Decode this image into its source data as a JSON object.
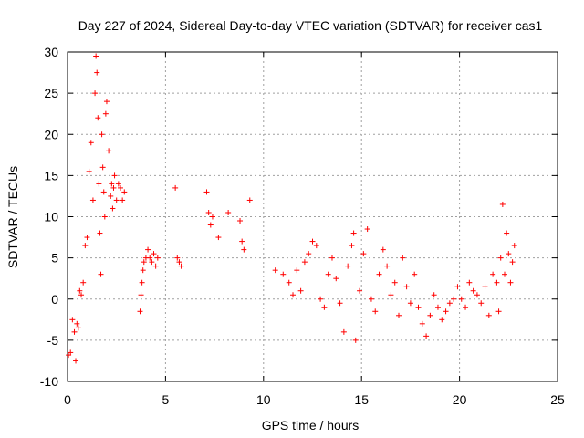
{
  "chart_data": {
    "type": "scatter",
    "title": "Day 227 of 2024, Sidereal Day-to-day VTEC variation (SDTVAR) for receiver cas1",
    "xlabel": "GPS time / hours",
    "ylabel": "SDTVAR / TECUs",
    "xlim": [
      0,
      25
    ],
    "ylim": [
      -10,
      30
    ],
    "xticks": [
      "0",
      "5",
      "10",
      "15",
      "20",
      "25"
    ],
    "yticks": [
      "-10",
      "-5",
      "0",
      "5",
      "10",
      "15",
      "20",
      "25",
      "30"
    ],
    "grid": true,
    "marker": "plus",
    "marker_color": "#ff0000",
    "series": [
      {
        "name": "SDTVAR",
        "x": [
          0.05,
          0.15,
          0.25,
          0.35,
          0.42,
          0.48,
          0.55,
          0.62,
          0.7,
          0.8,
          0.9,
          1.0,
          1.1,
          1.2,
          1.3,
          1.4,
          1.45,
          1.5,
          1.55,
          1.6,
          1.65,
          1.7,
          1.75,
          1.8,
          1.85,
          1.9,
          1.95,
          2.0,
          2.1,
          2.2,
          2.25,
          2.3,
          2.35,
          2.4,
          2.5,
          2.6,
          2.7,
          2.8,
          2.9,
          3.7,
          3.75,
          3.8,
          3.85,
          3.9,
          4.0,
          4.1,
          4.2,
          4.3,
          4.4,
          4.5,
          4.6,
          5.5,
          5.6,
          5.7,
          5.8,
          7.1,
          7.2,
          7.3,
          7.4,
          7.7,
          8.2,
          8.8,
          8.9,
          9.0,
          9.3,
          10.6,
          11.0,
          11.3,
          11.5,
          11.7,
          11.9,
          12.1,
          12.3,
          12.5,
          12.7,
          12.9,
          13.1,
          13.3,
          13.5,
          13.7,
          13.9,
          14.1,
          14.3,
          14.5,
          14.6,
          14.7,
          14.9,
          15.1,
          15.3,
          15.5,
          15.7,
          15.9,
          16.1,
          16.3,
          16.5,
          16.7,
          16.9,
          17.1,
          17.3,
          17.5,
          17.7,
          17.9,
          18.1,
          18.3,
          18.5,
          18.7,
          18.9,
          19.1,
          19.3,
          19.5,
          19.7,
          19.9,
          20.1,
          20.3,
          20.5,
          20.7,
          20.9,
          21.1,
          21.3,
          21.5,
          21.7,
          21.9,
          22.0,
          22.1,
          22.2,
          22.3,
          22.4,
          22.5,
          22.6,
          22.7,
          22.8
        ],
        "y": [
          -6.8,
          -6.5,
          -2.5,
          -4.0,
          -7.5,
          -3.0,
          -3.5,
          1.0,
          0.5,
          2.0,
          6.5,
          7.5,
          15.5,
          19.0,
          12.0,
          25.0,
          29.5,
          27.5,
          22.0,
          14.0,
          8.0,
          3.0,
          20.0,
          16.0,
          13.0,
          10.0,
          22.5,
          24.0,
          18.0,
          12.5,
          14.0,
          11.0,
          13.5,
          15.0,
          12.0,
          14.0,
          13.5,
          12.0,
          13.0,
          -1.5,
          0.5,
          2.0,
          3.5,
          4.5,
          5.0,
          6.0,
          5.0,
          4.5,
          5.5,
          4.0,
          5.0,
          13.5,
          5.0,
          4.5,
          4.0,
          13.0,
          10.5,
          9.0,
          10.0,
          7.5,
          10.5,
          9.5,
          7.0,
          6.0,
          12.0,
          3.5,
          3.0,
          2.0,
          0.5,
          3.5,
          1.0,
          4.5,
          5.5,
          7.0,
          6.5,
          0.0,
          -1.0,
          3.0,
          5.0,
          2.5,
          -0.5,
          -4.0,
          4.0,
          6.5,
          8.0,
          -5.0,
          1.0,
          5.5,
          8.5,
          0.0,
          -1.5,
          3.0,
          6.0,
          4.0,
          0.5,
          2.0,
          -2.0,
          5.0,
          1.5,
          -0.5,
          3.0,
          -1.0,
          -3.0,
          -4.5,
          -2.0,
          0.5,
          -1.0,
          -2.5,
          -1.5,
          -0.5,
          0.0,
          1.5,
          0.0,
          -1.0,
          2.0,
          1.0,
          0.5,
          -0.5,
          1.5,
          -2.0,
          3.0,
          2.0,
          -1.5,
          5.0,
          11.5,
          3.0,
          8.0,
          5.5,
          2.0,
          4.5,
          6.5
        ]
      }
    ]
  }
}
